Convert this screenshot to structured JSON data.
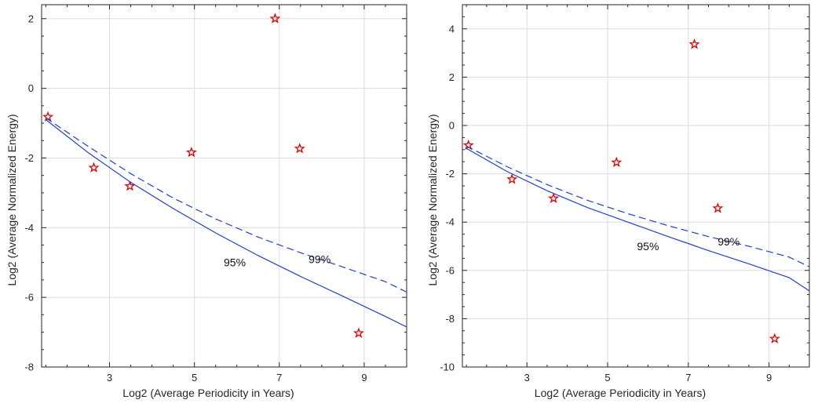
{
  "chart_data": [
    {
      "type": "scatter",
      "xlabel": "Log2 (Average Periodicity in Years)",
      "ylabel": "Log2 (Average Normalized Energy)",
      "xlim": [
        1.4,
        10.0
      ],
      "ylim": [
        -8,
        2.4
      ],
      "xticks": [
        3,
        5,
        7,
        9
      ],
      "yticks": [
        2,
        0,
        -2,
        -4,
        -6,
        -8
      ],
      "xtick_labels": [
        "3",
        "5",
        "7",
        "9"
      ],
      "ytick_labels": [
        "2",
        "0",
        "-2",
        "-4",
        "-6",
        "-8"
      ],
      "grid": true,
      "series": [
        {
          "kind": "points",
          "marker": "star",
          "color": "#e00000",
          "points": [
            {
              "x": 1.55,
              "y": -0.82
            },
            {
              "x": 2.63,
              "y": -2.28
            },
            {
              "x": 3.48,
              "y": -2.81
            },
            {
              "x": 4.93,
              "y": -1.84
            },
            {
              "x": 6.9,
              "y": 2.0
            },
            {
              "x": 7.48,
              "y": -1.73
            },
            {
              "x": 8.87,
              "y": -7.03
            }
          ]
        },
        {
          "kind": "line",
          "style": "solid",
          "color": "#1f3fd6",
          "x": [
            1.5,
            2.5,
            3.5,
            4.5,
            5.5,
            6.5,
            7.5,
            8.5,
            9.5,
            10.0
          ],
          "y": [
            -0.9,
            -1.85,
            -2.7,
            -3.45,
            -4.15,
            -4.8,
            -5.4,
            -5.97,
            -6.55,
            -6.85
          ]
        },
        {
          "kind": "line",
          "style": "dashed",
          "color": "#1f3fd6",
          "x": [
            1.5,
            2.5,
            3.5,
            4.5,
            5.5,
            6.5,
            7.5,
            8.5,
            9.5,
            10.0
          ],
          "y": [
            -0.85,
            -1.67,
            -2.45,
            -3.15,
            -3.75,
            -4.27,
            -4.72,
            -5.13,
            -5.55,
            -5.85
          ]
        }
      ],
      "annotations": [
        {
          "text": "95%",
          "x": 5.95,
          "y": -5.0
        },
        {
          "text": "99%",
          "x": 7.95,
          "y": -4.9
        }
      ]
    },
    {
      "type": "scatter",
      "xlabel": "Log2 (Average Periodicity in Years)",
      "ylabel": "Log2 (Average Normalized Energy)",
      "xlim": [
        1.4,
        10.0
      ],
      "ylim": [
        -10,
        5.0
      ],
      "xticks": [
        3,
        5,
        7,
        9
      ],
      "yticks": [
        4,
        2,
        0,
        -2,
        -4,
        -6,
        -8,
        -10
      ],
      "xtick_labels": [
        "3",
        "5",
        "7",
        "9"
      ],
      "ytick_labels": [
        "4",
        "2",
        "0",
        "-2",
        "-4",
        "-6",
        "-8",
        "-10"
      ],
      "grid": true,
      "series": [
        {
          "kind": "points",
          "marker": "star",
          "color": "#e00000",
          "points": [
            {
              "x": 1.55,
              "y": -0.82
            },
            {
              "x": 2.63,
              "y": -2.23
            },
            {
              "x": 3.66,
              "y": -3.02
            },
            {
              "x": 5.22,
              "y": -1.53
            },
            {
              "x": 7.15,
              "y": 3.36
            },
            {
              "x": 7.73,
              "y": -3.43
            },
            {
              "x": 9.14,
              "y": -8.83
            }
          ]
        },
        {
          "kind": "line",
          "style": "solid",
          "color": "#1f3fd6",
          "x": [
            1.5,
            2.5,
            3.5,
            4.5,
            5.5,
            6.5,
            7.5,
            8.5,
            9.5,
            10.0
          ],
          "y": [
            -0.95,
            -1.9,
            -2.7,
            -3.4,
            -4.0,
            -4.6,
            -5.18,
            -5.73,
            -6.3,
            -6.85
          ]
        },
        {
          "kind": "line",
          "style": "dashed",
          "color": "#1f3fd6",
          "x": [
            1.5,
            2.5,
            3.5,
            4.5,
            5.5,
            6.5,
            7.5,
            8.5,
            9.5,
            10.0
          ],
          "y": [
            -0.85,
            -1.7,
            -2.45,
            -3.1,
            -3.65,
            -4.15,
            -4.6,
            -5.0,
            -5.45,
            -5.85
          ]
        }
      ],
      "annotations": [
        {
          "text": "95%",
          "x": 6.0,
          "y": -5.0
        },
        {
          "text": "99%",
          "x": 8.0,
          "y": -4.8
        }
      ]
    }
  ]
}
